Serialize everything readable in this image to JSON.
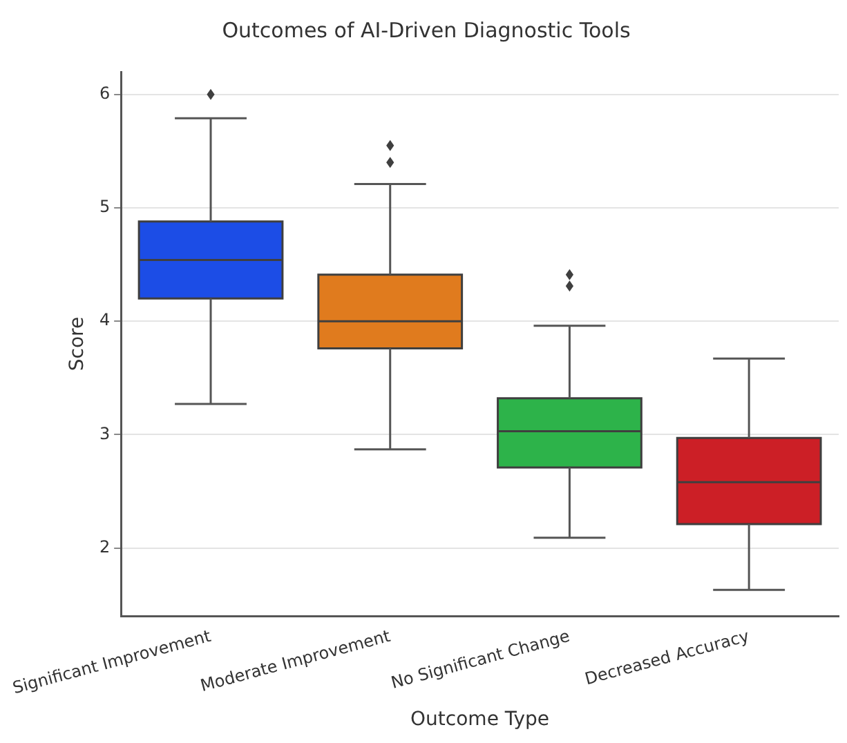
{
  "chart_data": {
    "type": "box",
    "title": "Outcomes of AI-Driven Diagnostic Tools",
    "xlabel": "Outcome Type",
    "ylabel": "Score",
    "categories": [
      "Significant Improvement",
      "Moderate Improvement",
      "No Significant Change",
      "Decreased Accuracy"
    ],
    "colors": [
      "#1c4de6",
      "#e07b1e",
      "#2db34a",
      "#cc1f26"
    ],
    "boxes": [
      {
        "low": 3.27,
        "q1": 4.2,
        "median": 4.54,
        "q3": 4.88,
        "high": 5.79,
        "outliers": [
          6.0
        ]
      },
      {
        "low": 2.87,
        "q1": 3.76,
        "median": 4.0,
        "q3": 4.41,
        "high": 5.21,
        "outliers": [
          5.55,
          5.4
        ]
      },
      {
        "low": 2.09,
        "q1": 2.71,
        "median": 3.03,
        "q3": 3.32,
        "high": 3.96,
        "outliers": [
          4.41,
          4.31
        ]
      },
      {
        "low": 1.63,
        "q1": 2.21,
        "median": 2.58,
        "q3": 2.97,
        "high": 3.67
      }
    ],
    "ylim": [
      1.4,
      6.2
    ],
    "yticks": [
      2,
      3,
      4,
      5,
      6
    ],
    "grid": "y",
    "legend": false,
    "marker": "diamond"
  }
}
